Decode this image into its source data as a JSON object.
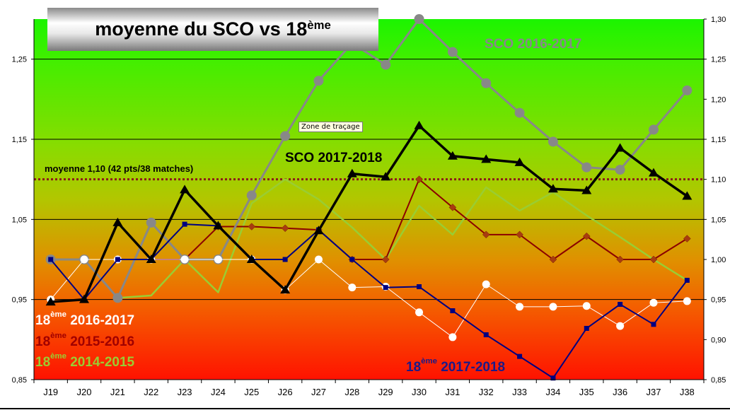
{
  "chart_data": {
    "type": "line",
    "title": "moyenne du SCO vs 18",
    "title_sup": "ème",
    "categories": [
      "J19",
      "J20",
      "J21",
      "J22",
      "J23",
      "J24",
      "J25",
      "J26",
      "J27",
      "J28",
      "J29",
      "J30",
      "J31",
      "J32",
      "J33",
      "J34",
      "J35",
      "J36",
      "J37",
      "J38"
    ],
    "ylim": [
      0.85,
      1.3
    ],
    "left_ticks": [
      "1,25",
      "1,15",
      "1,05",
      "0,95",
      "0,85"
    ],
    "left_tick_values": [
      1.25,
      1.15,
      1.05,
      0.95,
      0.85
    ],
    "right_ticks": [
      "1,30",
      "1,25",
      "1,20",
      "1,15",
      "1,10",
      "1,05",
      "1,00",
      "0,95",
      "0,90",
      "0,85"
    ],
    "right_tick_values": [
      1.3,
      1.25,
      1.2,
      1.15,
      1.1,
      1.05,
      1.0,
      0.95,
      0.9,
      0.85
    ],
    "gridlines": [
      1.25,
      1.15,
      1.05,
      0.95
    ],
    "reference_line": {
      "value": 1.1,
      "label": "moyenne 1,10 (42 pts/38 matches)",
      "color": "#8b1a1a"
    },
    "series": [
      {
        "name": "18ème 2014-2015",
        "label_prefix": "18",
        "label_sup": "ème",
        "label_main": "2014-2015",
        "color": "#9acd32",
        "marker": "none",
        "values": [
          null,
          null,
          0.952,
          0.955,
          1.0,
          0.959,
          1.07,
          1.1,
          1.075,
          1.04,
          1.0,
          1.067,
          1.031,
          1.09,
          1.061,
          1.084,
          1.055,
          1.028,
          1.0,
          0.974
        ]
      },
      {
        "name": "18ème 2015-2016",
        "label_prefix": "18",
        "label_sup": "ème",
        "label_main": "2015-2016",
        "color": "#8b0000",
        "marker": "diamond",
        "values": [
          null,
          null,
          null,
          1.0,
          1.0,
          1.041,
          1.041,
          1.039,
          1.037,
          1.0,
          1.0,
          1.1,
          1.065,
          1.031,
          1.031,
          1.0,
          1.029,
          1.0,
          1.0,
          1.026
        ]
      },
      {
        "name": "SCO 2016-2017",
        "label_main": "SCO 2016-2017",
        "color": "#888888",
        "marker": "circle",
        "values": [
          1.0,
          1.0,
          0.952,
          1.046,
          1.0,
          1.0,
          1.08,
          1.154,
          1.223,
          1.27,
          1.243,
          1.3,
          1.259,
          1.22,
          1.183,
          1.147,
          1.115,
          1.112,
          1.162,
          1.211
        ]
      },
      {
        "name": "18ème 2016-2017",
        "label_prefix": "18",
        "label_sup": "ème",
        "label_main": "2016-2017",
        "color": "#ffffff",
        "marker": "whitecircle",
        "values": [
          0.95,
          1.0,
          1.0,
          1.0,
          1.0,
          1.0,
          1.0,
          0.962,
          1.0,
          0.965,
          0.966,
          0.934,
          0.903,
          0.969,
          0.941,
          0.941,
          0.942,
          0.917,
          0.946,
          0.948
        ]
      },
      {
        "name": "18ème 2017-2018",
        "label_prefix": "18",
        "label_sup": "ème",
        "label_main": "2017-2018",
        "color": "#000080",
        "marker": "square",
        "values": [
          1.0,
          0.95,
          1.0,
          1.0,
          1.044,
          1.042,
          1.0,
          1.0,
          1.037,
          1.0,
          0.965,
          0.966,
          0.936,
          0.906,
          0.879,
          0.852,
          0.914,
          0.944,
          0.919,
          0.974
        ]
      },
      {
        "name": "SCO 2017-2018",
        "label_main": "SCO 2017-2018",
        "color": "#000000",
        "marker": "triangle",
        "values": [
          0.947,
          0.95,
          1.046,
          1.0,
          1.087,
          1.042,
          1.0,
          0.962,
          1.036,
          1.107,
          1.103,
          1.167,
          1.129,
          1.125,
          1.121,
          1.088,
          1.086,
          1.139,
          1.108,
          1.079
        ]
      }
    ],
    "tooltip": "Zone de traçage",
    "legend": "inline labels"
  }
}
